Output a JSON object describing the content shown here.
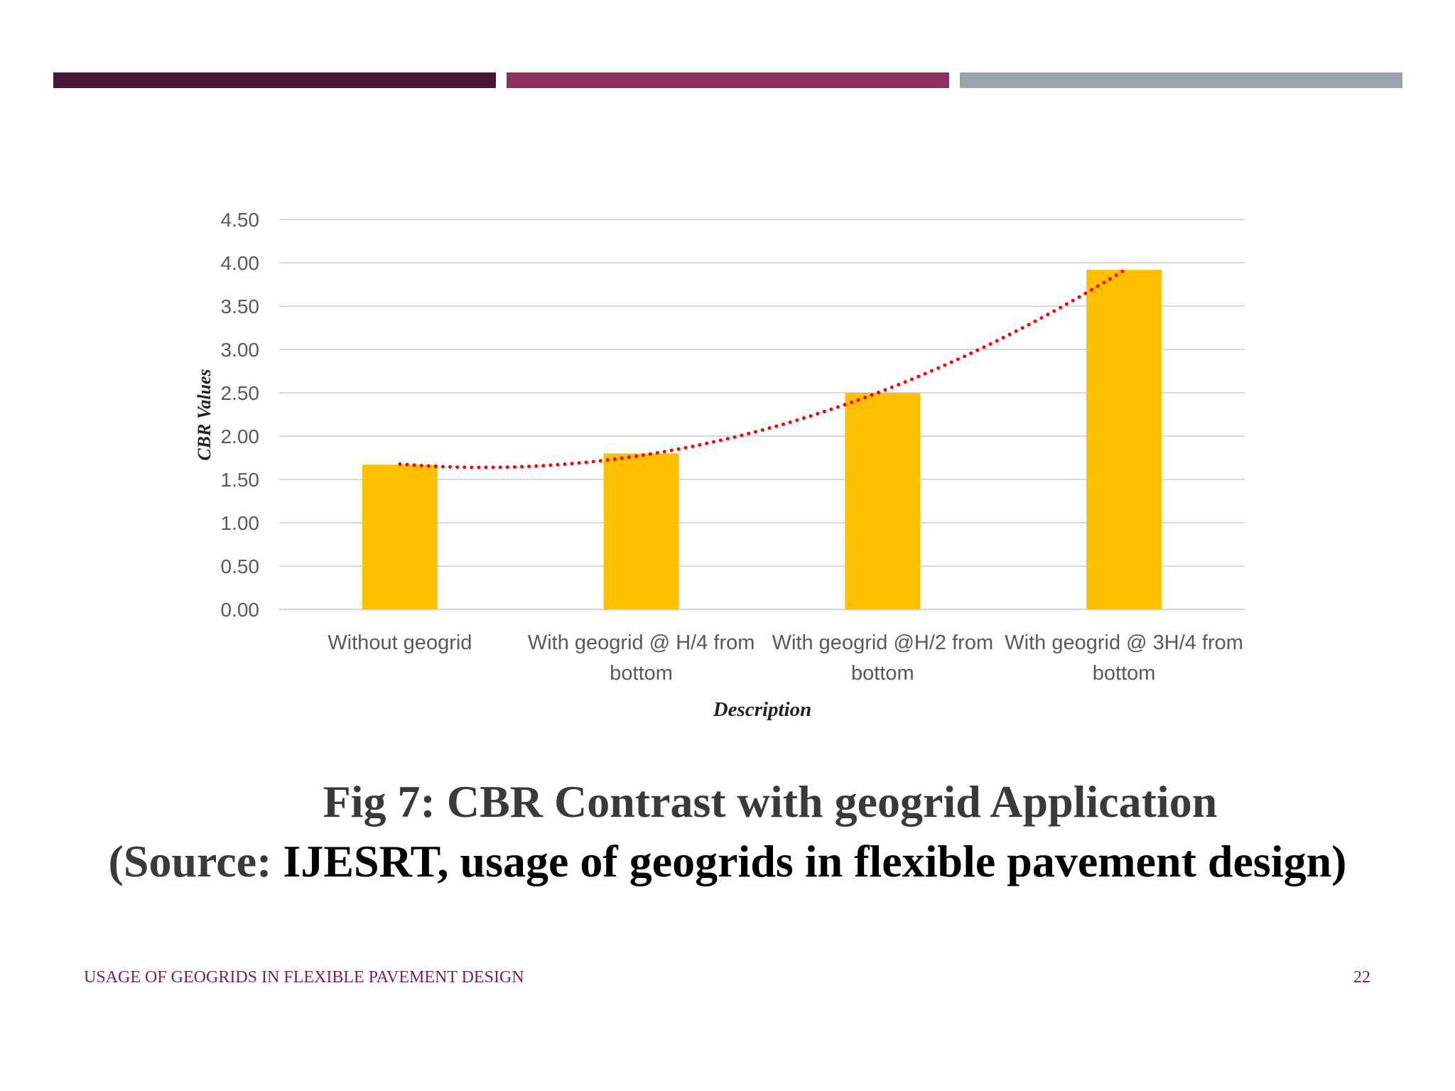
{
  "colors": {
    "strip_1": "#4a1638",
    "strip_2": "#8e2f62",
    "strip_3": "#9ba3aa",
    "bar": "#ffc000",
    "trendline": "#ff0000",
    "gridline": "#d9d9d9"
  },
  "chart_data": {
    "type": "bar",
    "categories": [
      [
        "Without geogrid"
      ],
      [
        "With geogrid @ H/4 from",
        "bottom"
      ],
      [
        "With geogrid @H/2 from",
        "bottom"
      ],
      [
        "With geogrid @ 3H/4 from",
        "bottom"
      ]
    ],
    "values": [
      1.67,
      1.8,
      2.5,
      3.92
    ],
    "ylabel": "CBR Values",
    "xlabel": "Description",
    "ylim": [
      0,
      4.5
    ],
    "yticks": [
      "0.00",
      "0.50",
      "1.00",
      "1.50",
      "2.00",
      "2.50",
      "3.00",
      "3.50",
      "4.00",
      "4.50"
    ],
    "ytick_values": [
      0,
      0.5,
      1.0,
      1.5,
      2.0,
      2.5,
      3.0,
      3.5,
      4.0,
      4.5
    ],
    "grid": true,
    "trendline": {
      "type": "polynomial",
      "style": "dotted"
    }
  },
  "caption": {
    "line1": "Fig 7: CBR Contrast with geogrid Application",
    "line2_prefix": "(Source: ",
    "line2_main": "IJESRT, usage of geogrids in flexible pavement design)"
  },
  "footer": {
    "title": "USAGE OF GEOGRIDS IN FLEXIBLE PAVEMENT DESIGN",
    "page": "22"
  }
}
